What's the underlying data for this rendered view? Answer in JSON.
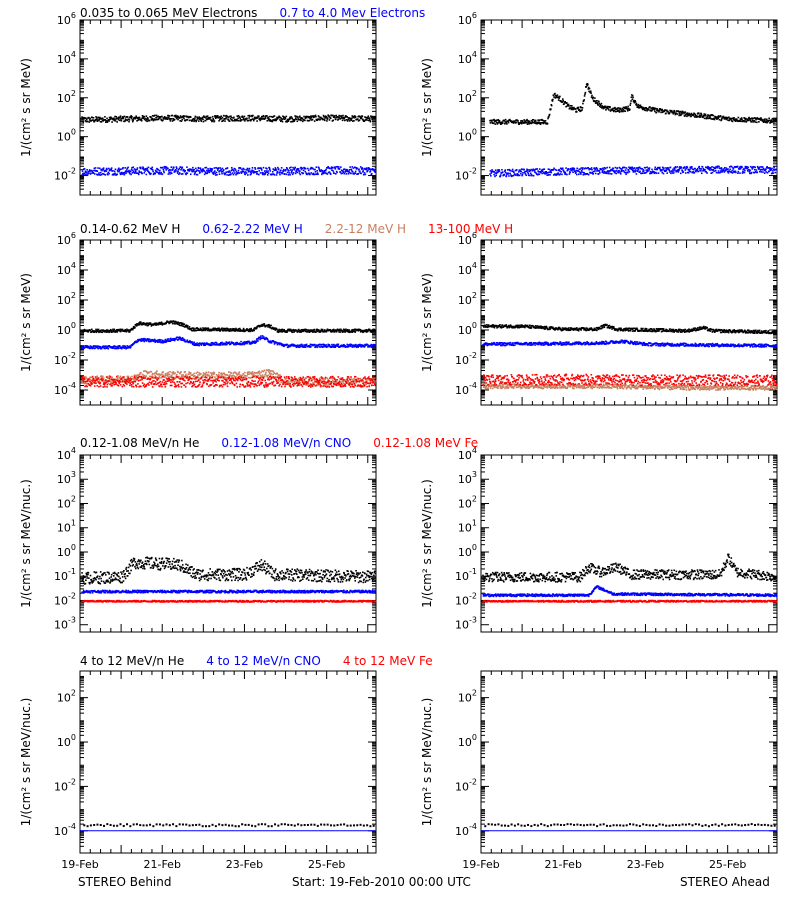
{
  "colors": {
    "black": "#000000",
    "blue": "#0000ff",
    "tan": "#c88060",
    "red": "#ff0000"
  },
  "footer": {
    "left": "STEREO Behind",
    "center": "Start: 19-Feb-2010 00:00 UTC",
    "right": "STEREO Ahead"
  },
  "chart_data": [
    {
      "type": "scatter",
      "row": 0,
      "title": "",
      "legend": [
        {
          "name": "0.035 to 0.065 MeV Electrons",
          "color": "#000000"
        },
        {
          "name": "0.7 to 4.0 Mev Electrons",
          "color": "#0000ff"
        }
      ],
      "ylabel": "1/(cm² s sr MeV)",
      "yscale": "log",
      "ylim_exp": [
        -3,
        6
      ],
      "ytick_exps": [
        -2,
        0,
        2,
        4,
        6
      ],
      "xlabels": [
        "19-Feb",
        "21-Feb",
        "23-Feb",
        "25-Feb"
      ],
      "xlim_days": [
        0,
        7.2
      ],
      "panels": [
        {
          "spacecraft": "STEREO Behind",
          "series": [
            {
              "name": "0.035 to 0.065 MeV Electrons",
              "color": "#000000",
              "points": [
                [
                  0,
                  0.9
                ],
                [
                  1,
                  0.95
                ],
                [
                  2,
                  1.0
                ],
                [
                  3,
                  0.95
                ],
                [
                  4,
                  1.0
                ],
                [
                  5,
                  0.95
                ],
                [
                  6,
                  1.0
                ],
                [
                  7.2,
                  0.95
                ]
              ],
              "spread": 0.15
            },
            {
              "name": "0.7 to 4.0 Mev Electrons",
              "color": "#0000ff",
              "points": [
                [
                  0,
                  -1.75
                ],
                [
                  2,
                  -1.7
                ],
                [
                  4,
                  -1.75
                ],
                [
                  6,
                  -1.7
                ],
                [
                  7.2,
                  -1.72
                ]
              ],
              "spread": 0.2
            }
          ]
        },
        {
          "spacecraft": "STEREO Ahead",
          "series": [
            {
              "name": "0.035 to 0.065 MeV Electrons",
              "color": "#000000",
              "points": [
                [
                  0.2,
                  0.8
                ],
                [
                  1.6,
                  0.8
                ],
                [
                  1.75,
                  2.2
                ],
                [
                  1.9,
                  2.0
                ],
                [
                  2.1,
                  1.6
                ],
                [
                  2.3,
                  1.4
                ],
                [
                  2.45,
                  1.5
                ],
                [
                  2.55,
                  2.8
                ],
                [
                  2.7,
                  2.0
                ],
                [
                  3.0,
                  1.5
                ],
                [
                  3.3,
                  1.4
                ],
                [
                  3.6,
                  1.5
                ],
                [
                  3.65,
                  2.1
                ],
                [
                  3.8,
                  1.6
                ],
                [
                  4.2,
                  1.4
                ],
                [
                  5,
                  1.2
                ],
                [
                  6,
                  0.95
                ],
                [
                  7.2,
                  0.85
                ]
              ],
              "spread": 0.12
            },
            {
              "name": "0.7 to 4.0 Mev Electrons",
              "color": "#0000ff",
              "points": [
                [
                  0.2,
                  -1.85
                ],
                [
                  2,
                  -1.75
                ],
                [
                  4,
                  -1.7
                ],
                [
                  6,
                  -1.65
                ],
                [
                  7.2,
                  -1.7
                ]
              ],
              "spread": 0.18
            }
          ]
        }
      ]
    },
    {
      "type": "scatter",
      "row": 1,
      "title": "",
      "legend": [
        {
          "name": "0.14-0.62 MeV H",
          "color": "#000000"
        },
        {
          "name": "0.62-2.22 MeV H",
          "color": "#0000ff"
        },
        {
          "name": "2.2-12 MeV H",
          "color": "#c88060"
        },
        {
          "name": "13-100 MeV H",
          "color": "#ff0000"
        }
      ],
      "ylabel": "1/(cm² s sr MeV)",
      "yscale": "log",
      "ylim_exp": [
        -5,
        6
      ],
      "ytick_exps": [
        -4,
        -2,
        0,
        2,
        4,
        6
      ],
      "xlabels": [
        "19-Feb",
        "21-Feb",
        "23-Feb",
        "25-Feb"
      ],
      "xlim_days": [
        0,
        7.2
      ],
      "panels": [
        {
          "spacecraft": "STEREO Behind",
          "series": [
            {
              "name": "0.14-0.62 MeV H",
              "color": "#000000",
              "points": [
                [
                  0,
                  0.0
                ],
                [
                  1.2,
                  0.0
                ],
                [
                  1.4,
                  0.5
                ],
                [
                  1.8,
                  0.4
                ],
                [
                  2.2,
                  0.6
                ],
                [
                  2.5,
                  0.4
                ],
                [
                  2.7,
                  0.1
                ],
                [
                  4.2,
                  0.05
                ],
                [
                  4.4,
                  0.4
                ],
                [
                  4.6,
                  0.3
                ],
                [
                  4.8,
                  0.0
                ],
                [
                  7.2,
                  0.0
                ]
              ],
              "spread": 0.1
            },
            {
              "name": "0.62-2.22 MeV H",
              "color": "#0000ff",
              "points": [
                [
                  0,
                  -1.1
                ],
                [
                  1.2,
                  -1.1
                ],
                [
                  1.4,
                  -0.6
                ],
                [
                  2.0,
                  -0.7
                ],
                [
                  2.4,
                  -0.5
                ],
                [
                  2.8,
                  -0.9
                ],
                [
                  4.2,
                  -0.8
                ],
                [
                  4.4,
                  -0.4
                ],
                [
                  4.6,
                  -0.7
                ],
                [
                  5.0,
                  -1.0
                ],
                [
                  7.2,
                  -1.0
                ]
              ],
              "spread": 0.1
            },
            {
              "name": "2.2-12 MeV H",
              "color": "#c88060",
              "points": [
                [
                  0,
                  -3.3
                ],
                [
                  1.3,
                  -3.2
                ],
                [
                  1.5,
                  -2.9
                ],
                [
                  3.0,
                  -3.0
                ],
                [
                  4.0,
                  -3.0
                ],
                [
                  4.6,
                  -2.8
                ],
                [
                  5.0,
                  -3.4
                ],
                [
                  7.2,
                  -3.4
                ]
              ],
              "spread": 0.25
            },
            {
              "name": "13-100 MeV H",
              "color": "#ff0000",
              "points": [
                [
                  0,
                  -3.4
                ],
                [
                  2,
                  -3.4
                ],
                [
                  4,
                  -3.4
                ],
                [
                  6,
                  -3.4
                ],
                [
                  7.2,
                  -3.4
                ]
              ],
              "spread": 0.35
            }
          ]
        },
        {
          "spacecraft": "STEREO Ahead",
          "series": [
            {
              "name": "0.14-0.62 MeV H",
              "color": "#000000",
              "points": [
                [
                  0,
                  0.3
                ],
                [
                  1.0,
                  0.3
                ],
                [
                  2.0,
                  0.1
                ],
                [
                  2.8,
                  0.1
                ],
                [
                  3.0,
                  0.35
                ],
                [
                  3.3,
                  0.1
                ],
                [
                  5.0,
                  0.0
                ],
                [
                  5.4,
                  0.2
                ],
                [
                  5.6,
                  0.0
                ],
                [
                  7.2,
                  -0.1
                ]
              ],
              "spread": 0.1
            },
            {
              "name": "0.62-2.22 MeV H",
              "color": "#0000ff",
              "points": [
                [
                  0,
                  -0.9
                ],
                [
                  2,
                  -0.85
                ],
                [
                  3,
                  -0.8
                ],
                [
                  3.4,
                  -0.7
                ],
                [
                  4,
                  -0.9
                ],
                [
                  7.2,
                  -1.0
                ]
              ],
              "spread": 0.1
            },
            {
              "name": "2.2-12 MeV H",
              "color": "#c88060",
              "points": [
                [
                  0,
                  -3.7
                ],
                [
                  3,
                  -3.7
                ],
                [
                  5,
                  -3.8
                ],
                [
                  7.2,
                  -3.8
                ]
              ],
              "spread": 0.15
            },
            {
              "name": "13-100 MeV H",
              "color": "#ff0000",
              "points": [
                [
                  0,
                  -3.3
                ],
                [
                  2,
                  -3.25
                ],
                [
                  4,
                  -3.3
                ],
                [
                  6,
                  -3.3
                ],
                [
                  7.2,
                  -3.3
                ]
              ],
              "spread": 0.35
            }
          ]
        }
      ]
    },
    {
      "type": "scatter",
      "row": 2,
      "title": "",
      "legend": [
        {
          "name": "0.12-1.08 MeV/n He",
          "color": "#000000"
        },
        {
          "name": "0.12-1.08 MeV/n CNO",
          "color": "#0000ff"
        },
        {
          "name": "0.12-1.08 MeV Fe",
          "color": "#ff0000"
        }
      ],
      "ylabel": "1/(cm² s sr MeV/nuc.)",
      "yscale": "log",
      "ylim_exp": [
        -3.3,
        4
      ],
      "ytick_exps": [
        -3,
        -2,
        -1,
        0,
        1,
        2,
        3,
        4
      ],
      "xlabels": [
        "19-Feb",
        "21-Feb",
        "23-Feb",
        "25-Feb"
      ],
      "xlim_days": [
        0,
        7.2
      ],
      "panels": [
        {
          "spacecraft": "STEREO Behind",
          "series": [
            {
              "name": "0.12-1.08 MeV/n He",
              "color": "#000000",
              "points": [
                [
                  0,
                  -1.05
                ],
                [
                  1.0,
                  -1.0
                ],
                [
                  1.3,
                  -0.4
                ],
                [
                  2.4,
                  -0.5
                ],
                [
                  2.8,
                  -0.9
                ],
                [
                  4.0,
                  -0.9
                ],
                [
                  4.4,
                  -0.5
                ],
                [
                  4.7,
                  -0.9
                ],
                [
                  7.2,
                  -1.0
                ]
              ],
              "spread": 0.25
            },
            {
              "name": "0.12-1.08 MeV/n CNO",
              "color": "#0000ff",
              "points": [
                [
                  0,
                  -1.6
                ],
                [
                  2,
                  -1.6
                ],
                [
                  4,
                  -1.6
                ],
                [
                  7.2,
                  -1.6
                ]
              ],
              "spread": 0.05
            },
            {
              "name": "0.12-1.08 MeV Fe",
              "color": "#ff0000",
              "points": [
                [
                  0,
                  -2.0
                ],
                [
                  3,
                  -2.0
                ],
                [
                  5,
                  -2.0
                ],
                [
                  7.2,
                  -2.0
                ]
              ],
              "spread": 0.03
            }
          ]
        },
        {
          "spacecraft": "STEREO Ahead",
          "series": [
            {
              "name": "0.12-1.08 MeV/n He",
              "color": "#000000",
              "points": [
                [
                  0,
                  -1.0
                ],
                [
                  2.4,
                  -1.0
                ],
                [
                  2.6,
                  -0.6
                ],
                [
                  2.9,
                  -0.8
                ],
                [
                  3.3,
                  -0.6
                ],
                [
                  3.6,
                  -0.9
                ],
                [
                  5.8,
                  -0.9
                ],
                [
                  6.0,
                  -0.2
                ],
                [
                  6.2,
                  -0.8
                ],
                [
                  7.2,
                  -1.0
                ]
              ],
              "spread": 0.2
            },
            {
              "name": "0.12-1.08 MeV/n CNO",
              "color": "#0000ff",
              "points": [
                [
                  0,
                  -1.75
                ],
                [
                  2.6,
                  -1.75
                ],
                [
                  2.8,
                  -1.4
                ],
                [
                  3.2,
                  -1.7
                ],
                [
                  7.2,
                  -1.75
                ]
              ],
              "spread": 0.05
            },
            {
              "name": "0.12-1.08 MeV Fe",
              "color": "#ff0000",
              "points": [
                [
                  0,
                  -2.0
                ],
                [
                  3,
                  -2.0
                ],
                [
                  5,
                  -2.0
                ],
                [
                  7.2,
                  -2.0
                ]
              ],
              "spread": 0.03
            }
          ]
        }
      ]
    },
    {
      "type": "scatter",
      "row": 3,
      "title": "",
      "legend": [
        {
          "name": "4 to 12 MeV/n He",
          "color": "#000000"
        },
        {
          "name": "4 to 12 MeV/n CNO",
          "color": "#0000ff"
        },
        {
          "name": "4 to 12 MeV Fe",
          "color": "#ff0000"
        }
      ],
      "ylabel": "1/(cm² s sr MeV/nuc.)",
      "yscale": "log",
      "ylim_exp": [
        -5,
        3.2
      ],
      "ytick_exps": [
        -4,
        -2,
        0,
        2
      ],
      "xlabels": [
        "19-Feb",
        "21-Feb",
        "23-Feb",
        "25-Feb"
      ],
      "xlim_days": [
        0,
        7.2
      ],
      "panels": [
        {
          "spacecraft": "STEREO Behind",
          "series": [
            {
              "name": "4 to 12 MeV/n He",
              "color": "#000000",
              "points": [
                [
                  0,
                  -3.7
                ],
                [
                  3,
                  -3.7
                ],
                [
                  5,
                  -3.7
                ],
                [
                  7.2,
                  -3.7
                ]
              ],
              "spread": 0.05,
              "sparse": true
            },
            {
              "name": "4 to 12 MeV/n CNO",
              "color": "#0000ff",
              "points": [
                [
                  0,
                  -4.0
                ],
                [
                  7.2,
                  -4.0
                ]
              ],
              "spread": 0.0,
              "line": true
            }
          ]
        },
        {
          "spacecraft": "STEREO Ahead",
          "series": [
            {
              "name": "4 to 12 MeV/n He",
              "color": "#000000",
              "points": [
                [
                  0,
                  -3.7
                ],
                [
                  3,
                  -3.7
                ],
                [
                  5,
                  -3.7
                ],
                [
                  7.2,
                  -3.7
                ]
              ],
              "spread": 0.05,
              "sparse": true
            },
            {
              "name": "4 to 12 MeV/n CNO",
              "color": "#0000ff",
              "points": [
                [
                  0,
                  -4.0
                ],
                [
                  7.2,
                  -4.0
                ]
              ],
              "spread": 0.0,
              "line": true
            }
          ]
        }
      ]
    }
  ]
}
